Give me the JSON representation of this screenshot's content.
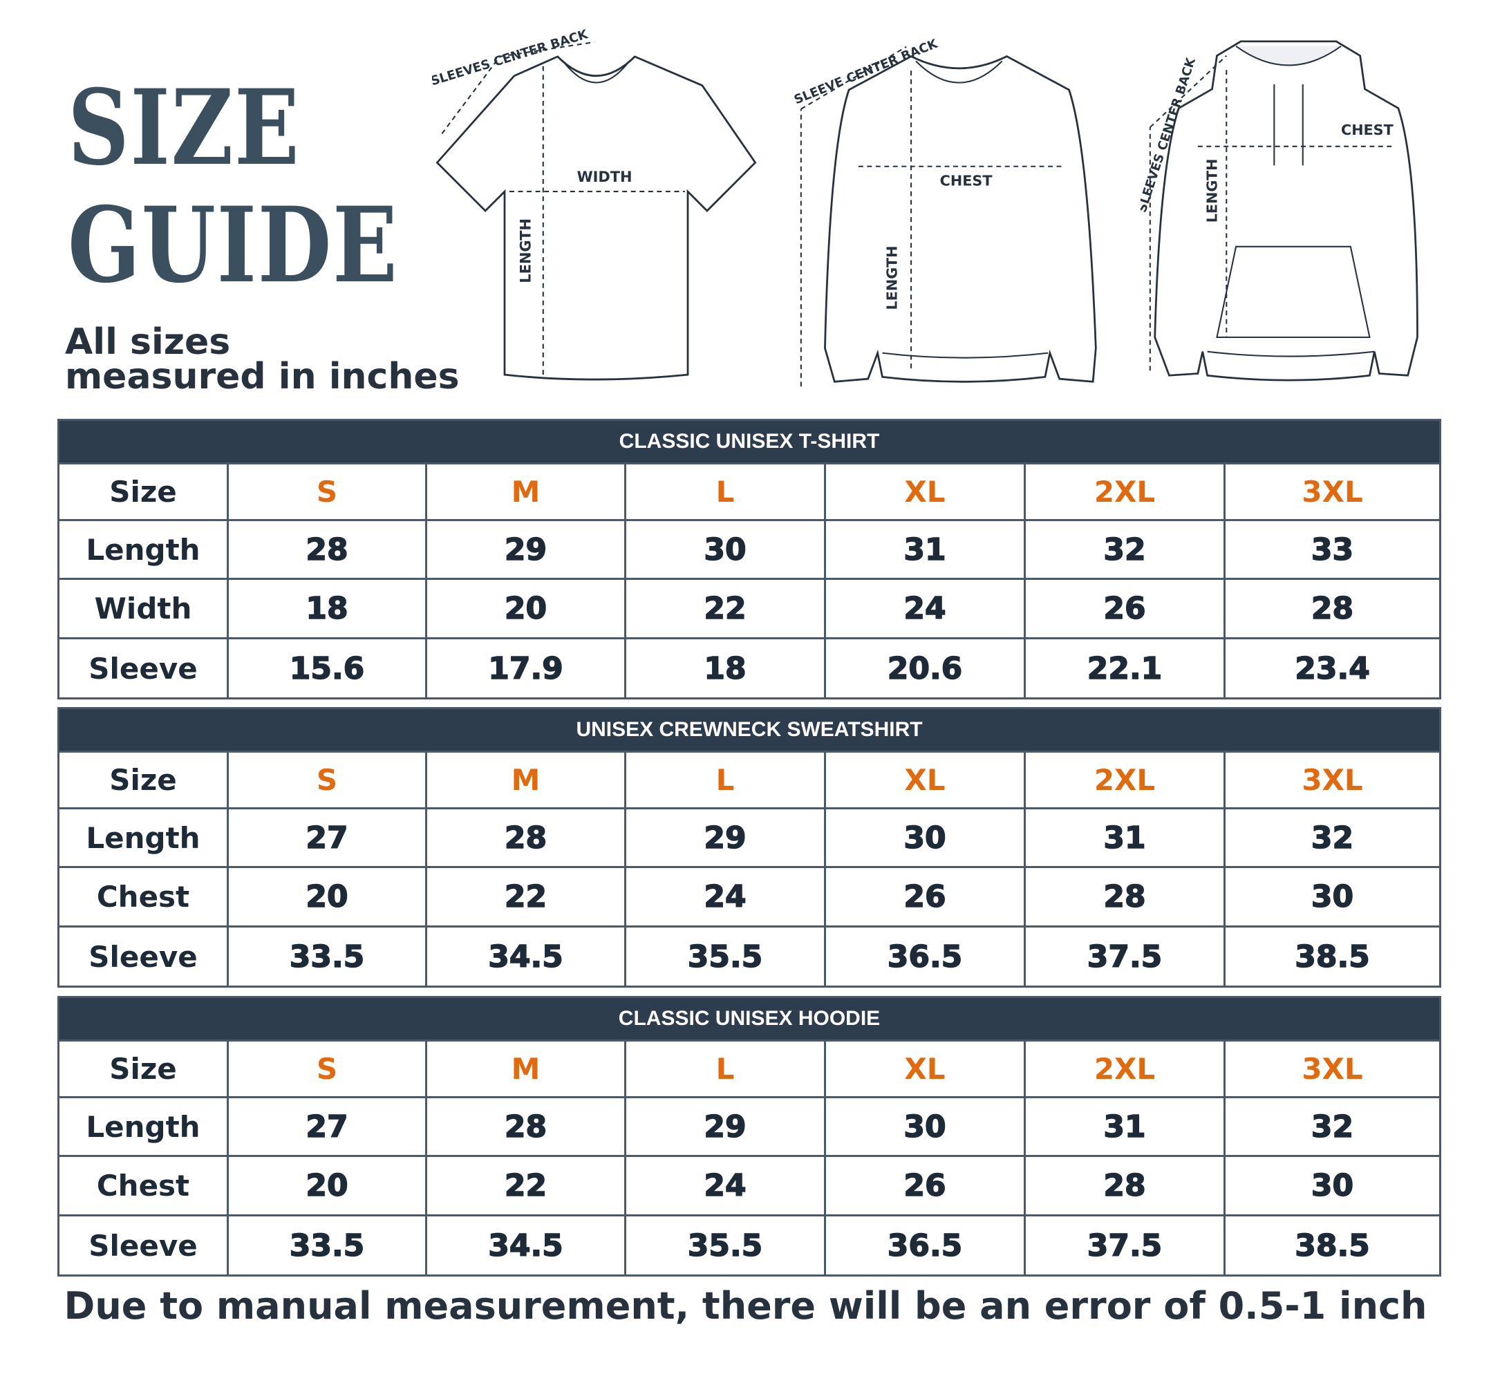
{
  "header": {
    "title_line1": "SIZE",
    "title_line2": "GUIDE",
    "subtitle_line1": "All sizes",
    "subtitle_line2": "measured in inches"
  },
  "illustrations": {
    "tshirt": {
      "sleeve": "SLEEVES CENTER BACK",
      "width": "WIDTH",
      "length": "LENGTH"
    },
    "sweatshirt": {
      "sleeve": "SLEEVE CENTER BACK",
      "chest": "CHEST",
      "length": "LENGTH"
    },
    "hoodie": {
      "sleeve": "SLEEVES CENTER BACK",
      "chest": "CHEST",
      "length": "LENGTH"
    }
  },
  "colors": {
    "header_bg": "#2e3d4e",
    "title": "#3b4f5e",
    "size_accent": "#e06a10",
    "text": "#1e2a38"
  },
  "tables": [
    {
      "title": "CLASSIC UNISEX T-SHIRT",
      "size_label": "Size",
      "sizes": [
        "S",
        "M",
        "L",
        "XL",
        "2XL",
        "3XL"
      ],
      "rows": [
        {
          "label": "Length",
          "values": [
            "28",
            "29",
            "30",
            "31",
            "32",
            "33"
          ]
        },
        {
          "label": "Width",
          "values": [
            "18",
            "20",
            "22",
            "24",
            "26",
            "28"
          ]
        },
        {
          "label": "Sleeve",
          "values": [
            "15.6",
            "17.9",
            "18",
            "20.6",
            "22.1",
            "23.4"
          ]
        }
      ]
    },
    {
      "title": "UNISEX CREWNECK SWEATSHIRT",
      "size_label": "Size",
      "sizes": [
        "S",
        "M",
        "L",
        "XL",
        "2XL",
        "3XL"
      ],
      "rows": [
        {
          "label": "Length",
          "values": [
            "27",
            "28",
            "29",
            "30",
            "31",
            "32"
          ]
        },
        {
          "label": "Chest",
          "values": [
            "20",
            "22",
            "24",
            "26",
            "28",
            "30"
          ]
        },
        {
          "label": "Sleeve",
          "values": [
            "33.5",
            "34.5",
            "35.5",
            "36.5",
            "37.5",
            "38.5"
          ]
        }
      ]
    },
    {
      "title": "CLASSIC UNISEX HOODIE",
      "size_label": "Size",
      "sizes": [
        "S",
        "M",
        "L",
        "XL",
        "2XL",
        "3XL"
      ],
      "rows": [
        {
          "label": "Length",
          "values": [
            "27",
            "28",
            "29",
            "30",
            "31",
            "32"
          ]
        },
        {
          "label": "Chest",
          "values": [
            "20",
            "22",
            "24",
            "26",
            "28",
            "30"
          ]
        },
        {
          "label": "Sleeve",
          "values": [
            "33.5",
            "34.5",
            "35.5",
            "36.5",
            "37.5",
            "38.5"
          ]
        }
      ]
    }
  ],
  "footer": "Due to manual measurement, there will be an error of 0.5-1  inch"
}
